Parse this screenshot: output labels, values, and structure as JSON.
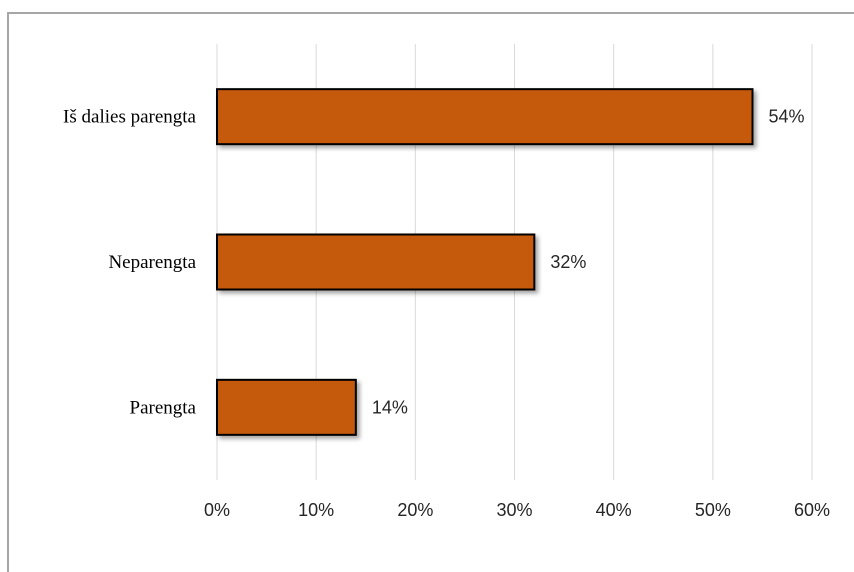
{
  "chart_data": {
    "type": "bar",
    "orientation": "horizontal",
    "categories": [
      "Iš dalies parengta",
      "Neparengta",
      "Parengta"
    ],
    "values": [
      54,
      32,
      14
    ],
    "value_labels": [
      "54%",
      "32%",
      "14%"
    ],
    "xlim": [
      0,
      60
    ],
    "x_ticks": [
      "0%",
      "10%",
      "20%",
      "30%",
      "40%",
      "50%",
      "60%"
    ],
    "grid": "vertical",
    "bar_color": "#c55a11",
    "bar_border_color": "#000000"
  }
}
